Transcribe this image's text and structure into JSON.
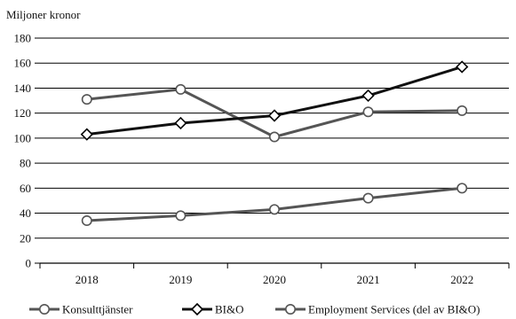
{
  "chart_data": {
    "type": "line",
    "unit_label": "Miljoner kronor",
    "categories": [
      "2018",
      "2019",
      "2020",
      "2021",
      "2022"
    ],
    "ylim": [
      0,
      180
    ],
    "yticks": [
      0,
      20,
      40,
      60,
      80,
      100,
      120,
      140,
      160,
      180
    ],
    "grid": "horizontal",
    "legend_position": "bottom",
    "series": [
      {
        "name": "Konsulttjänster",
        "values": [
          131,
          139,
          101,
          121,
          122
        ],
        "color": "#555555",
        "marker": "circle"
      },
      {
        "name": "BI&O",
        "values": [
          103,
          112,
          118,
          134,
          157
        ],
        "color": "#111111",
        "marker": "diamond"
      },
      {
        "name": "Employment Services (del av BI&O)",
        "values": [
          34,
          38,
          43,
          52,
          60
        ],
        "color": "#555555",
        "marker": "circle"
      }
    ]
  }
}
